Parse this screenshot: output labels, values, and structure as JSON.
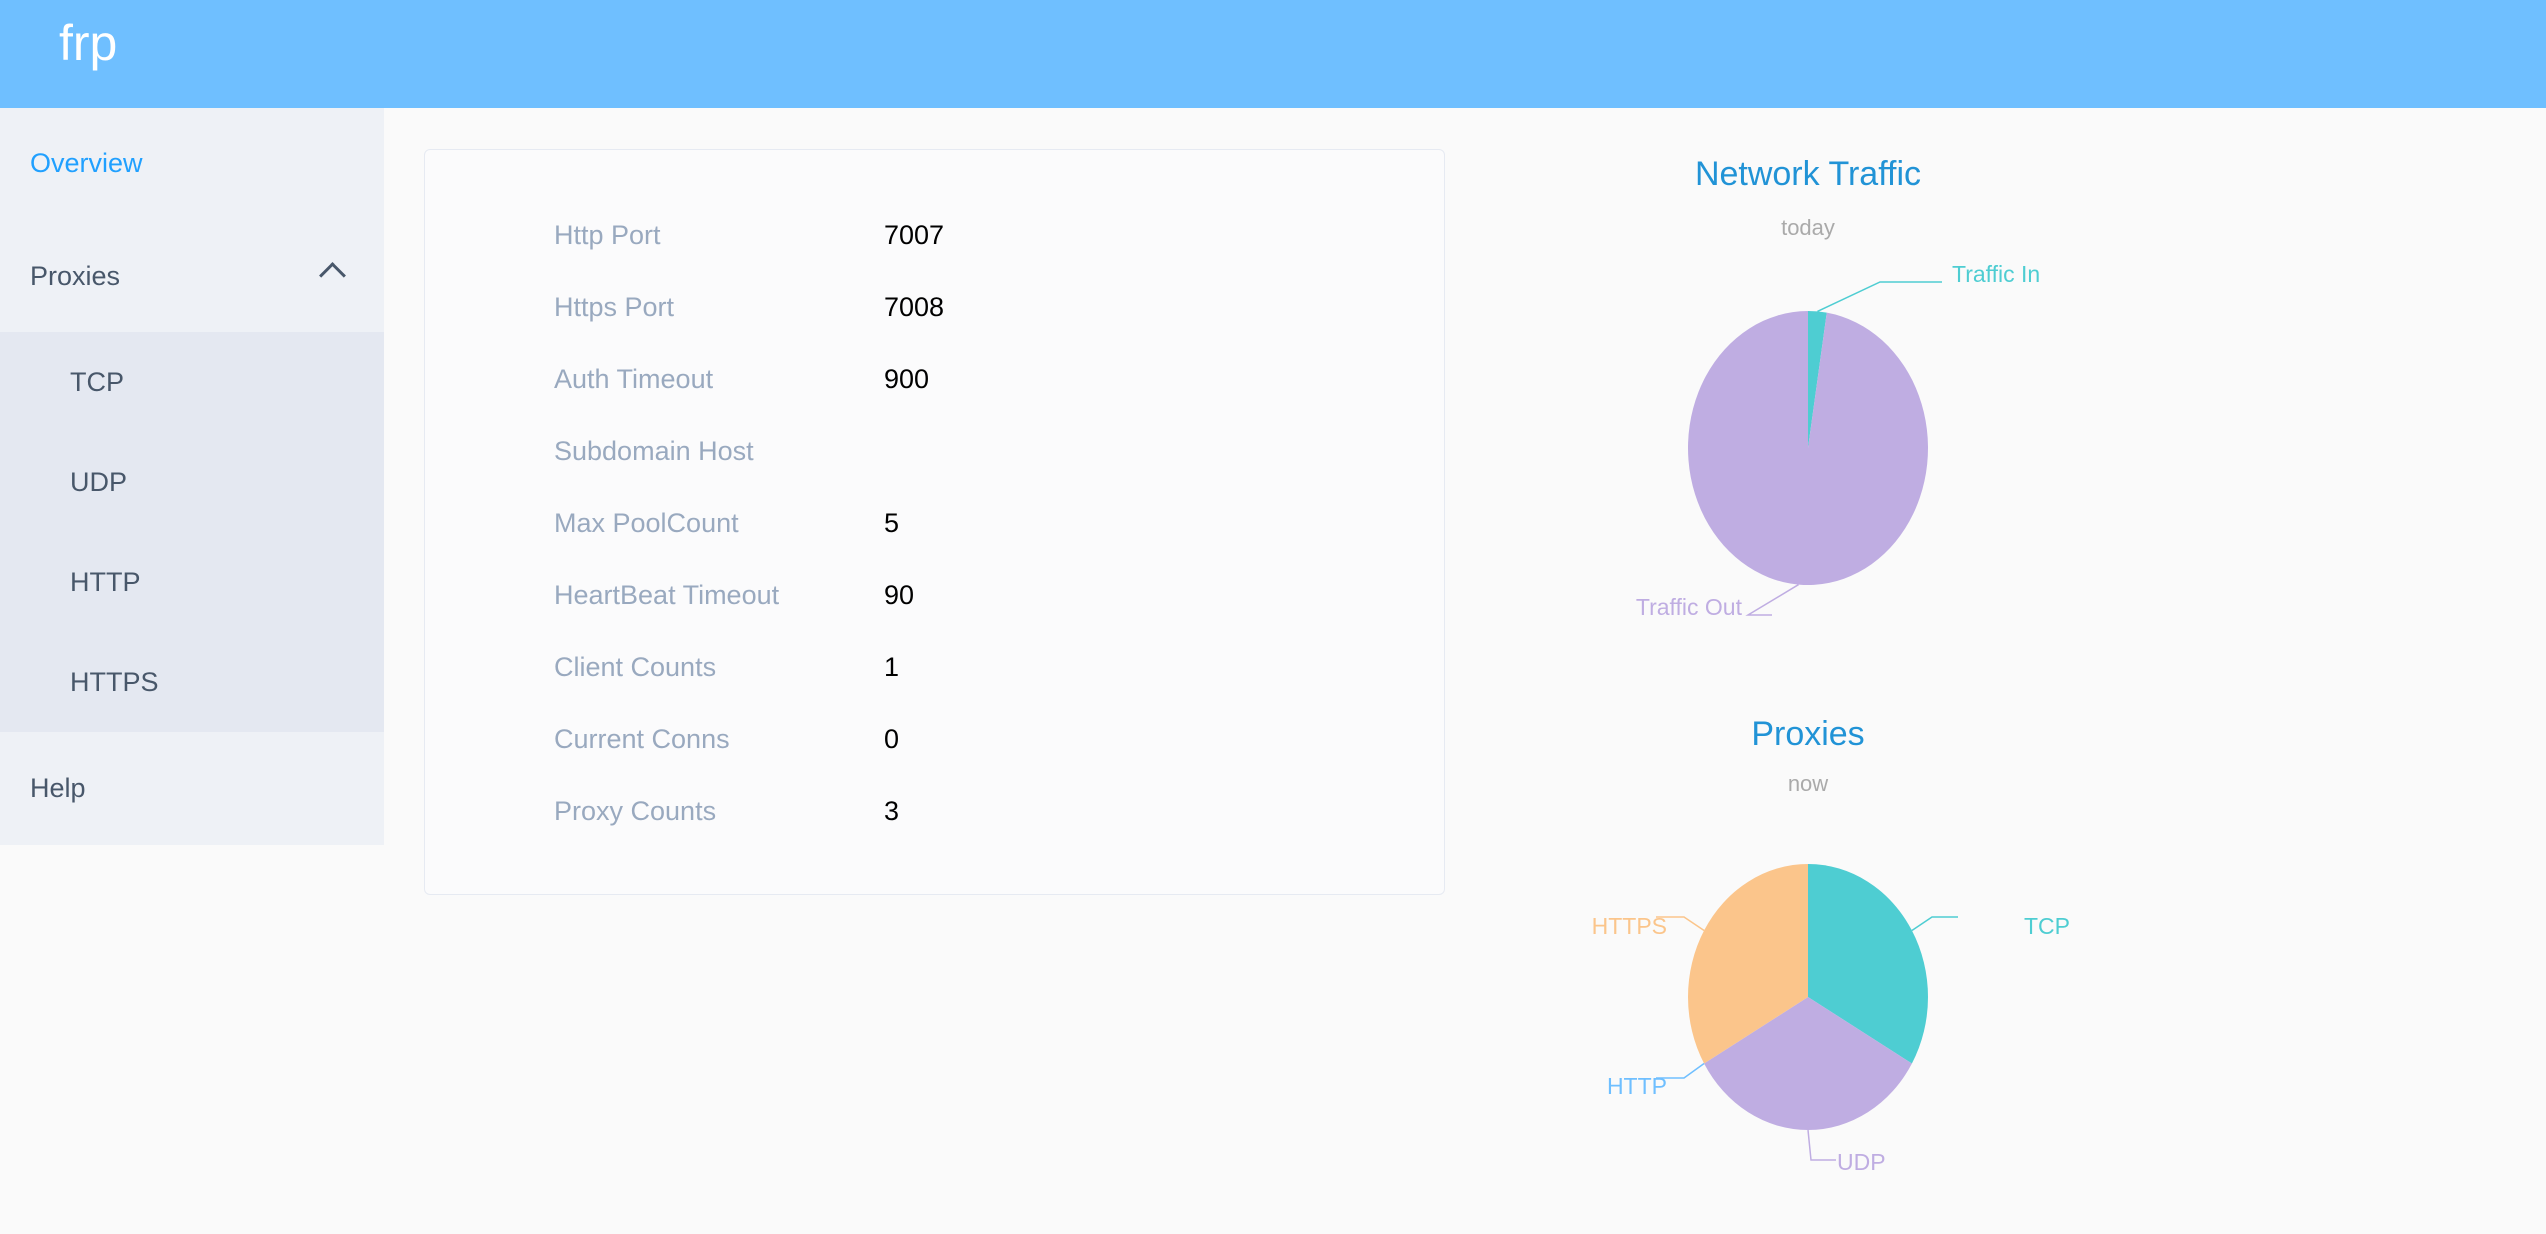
{
  "header": {
    "brand": "frp",
    "bg_color": "#6fbfff"
  },
  "sidebar": {
    "items": [
      {
        "label": "Overview",
        "active": true
      },
      {
        "label": "Proxies",
        "expanded": true
      },
      {
        "label": "Help"
      }
    ],
    "subitems": [
      {
        "label": "TCP"
      },
      {
        "label": "UDP"
      },
      {
        "label": "HTTP"
      },
      {
        "label": "HTTPS"
      }
    ]
  },
  "overview": {
    "rows": [
      {
        "label": "Http Port",
        "value": "7007"
      },
      {
        "label": "Https Port",
        "value": "7008"
      },
      {
        "label": "Auth Timeout",
        "value": "900"
      },
      {
        "label": "Subdomain Host",
        "value": ""
      },
      {
        "label": "Max PoolCount",
        "value": "5"
      },
      {
        "label": "HeartBeat Timeout",
        "value": "90"
      },
      {
        "label": "Client Counts",
        "value": "1"
      },
      {
        "label": "Current Conns",
        "value": "0"
      },
      {
        "label": "Proxy Counts",
        "value": "3"
      }
    ]
  },
  "chart_data": [
    {
      "type": "pie",
      "title": "Network Traffic",
      "subtitle": "today",
      "slices": [
        {
          "name": "Traffic In",
          "value": 2.5,
          "color": "#4ecdd2"
        },
        {
          "name": "Traffic Out",
          "value": 97.5,
          "color": "#bfade2"
        }
      ]
    },
    {
      "type": "pie",
      "title": "Proxies",
      "subtitle": "now",
      "slices": [
        {
          "name": "TCP",
          "value": 1,
          "color": "#4ecdd2"
        },
        {
          "name": "UDP",
          "value": 1,
          "color": "#bfade2"
        },
        {
          "name": "HTTP",
          "value": 0,
          "color": "#6fbfff"
        },
        {
          "name": "HTTPS",
          "value": 1,
          "color": "#fbc58b"
        }
      ]
    }
  ]
}
